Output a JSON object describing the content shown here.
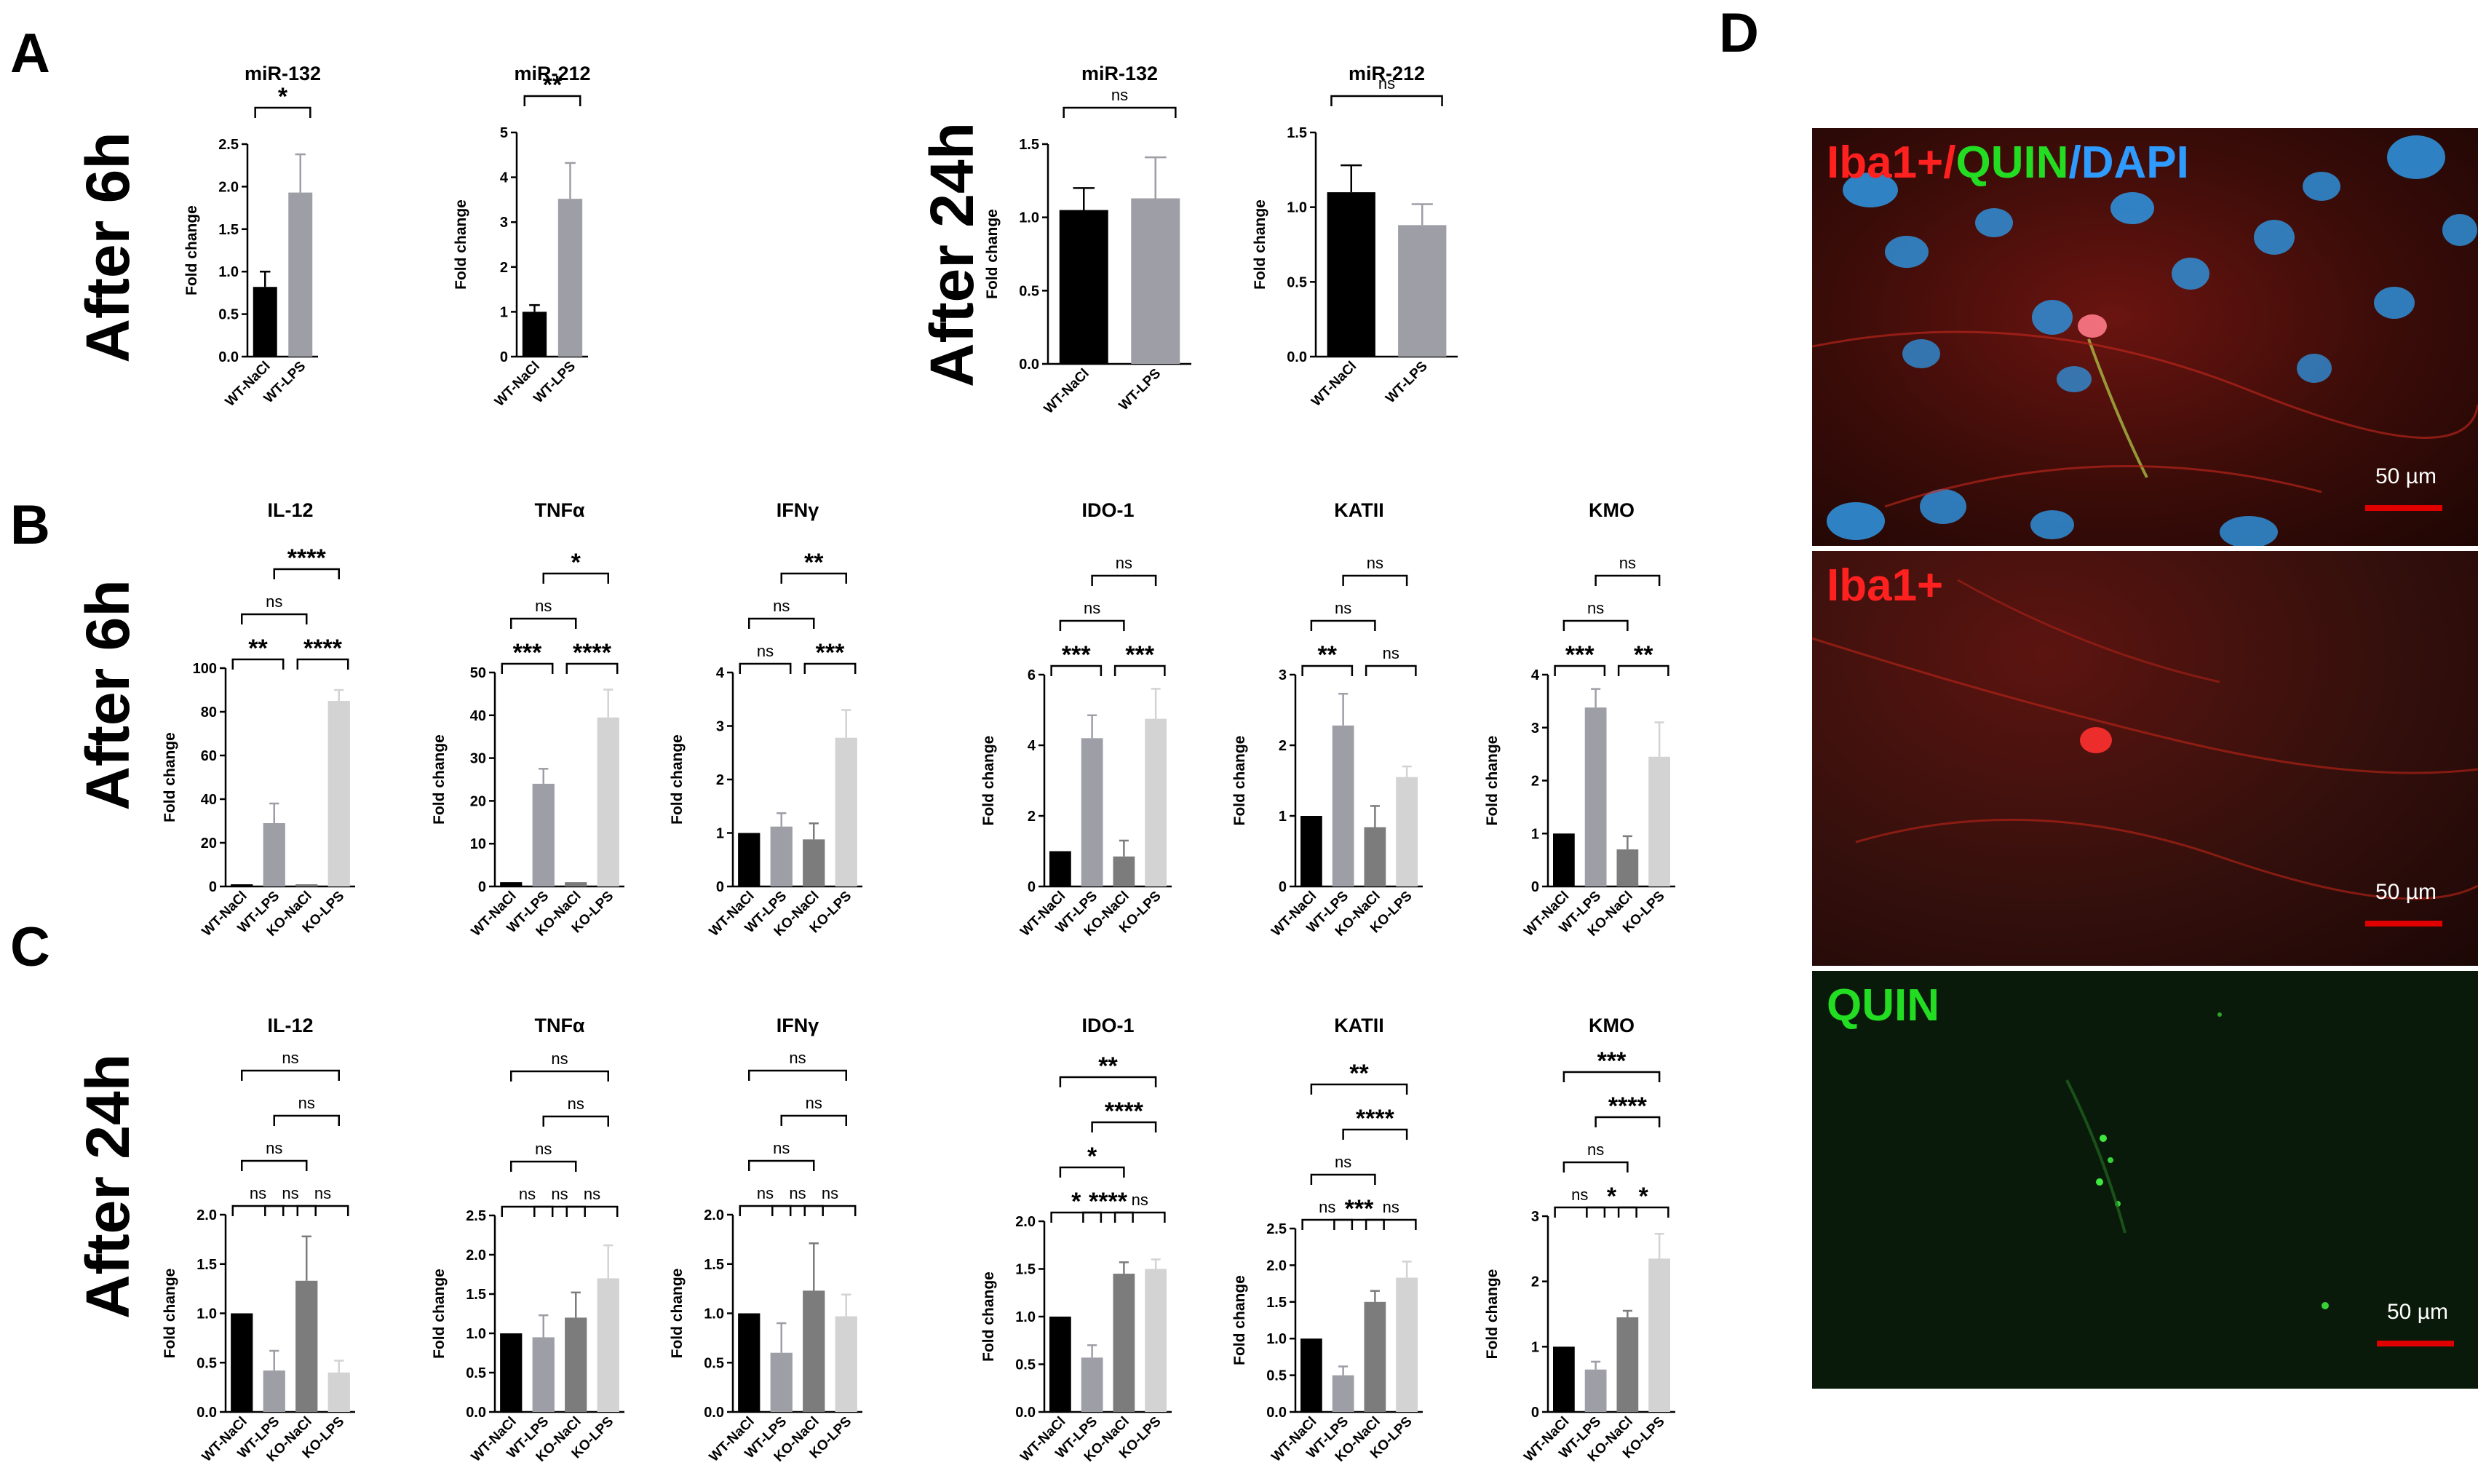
{
  "panels": {
    "A": "A",
    "B": "B",
    "C": "C",
    "D": "D"
  },
  "row_labels": {
    "a_6h": "After 6h",
    "a_24h": "After 24h",
    "b_6h": "After 6h",
    "c_24h": "After 24h"
  },
  "colors": {
    "WT-NaCl": "#000000",
    "WT-LPS": "#9e9ea6",
    "KO-NaCl": "#7c7c7c",
    "KO-LPS": "#d3d3d3"
  },
  "chart_data": [
    {
      "type": "bar",
      "title": "miR-132",
      "ylabel": "Fold change",
      "categories": [
        "WT-NaCl",
        "WT-LPS"
      ],
      "values": [
        0.82,
        1.93
      ],
      "errors": [
        0.18,
        0.45
      ],
      "ylim": [
        0,
        2.5
      ],
      "yticks": [
        0.0,
        0.5,
        1.0,
        1.5,
        2.0,
        2.5
      ],
      "comparisons": [
        {
          "from": 0,
          "to": 1,
          "label": "*"
        }
      ]
    },
    {
      "type": "bar",
      "title": "miR-212",
      "ylabel": "Fold change",
      "categories": [
        "WT-NaCl",
        "WT-LPS"
      ],
      "values": [
        1.0,
        3.52
      ],
      "errors": [
        0.15,
        0.8
      ],
      "ylim": [
        0,
        5
      ],
      "yticks": [
        0,
        1,
        2,
        3,
        4,
        5
      ],
      "comparisons": [
        {
          "from": 0,
          "to": 1,
          "label": "**"
        }
      ]
    },
    {
      "type": "bar",
      "title": "miR-132",
      "ylabel": "Fold change",
      "categories": [
        "WT-NaCl",
        "WT-LPS"
      ],
      "values": [
        1.05,
        1.13
      ],
      "errors": [
        0.15,
        0.28
      ],
      "ylim": [
        0,
        1.5
      ],
      "yticks": [
        0.0,
        0.5,
        1.0,
        1.5
      ],
      "comparisons": [
        {
          "from": 0,
          "to": 1,
          "label": "ns"
        }
      ]
    },
    {
      "type": "bar",
      "title": "miR-212",
      "ylabel": "Fold change",
      "categories": [
        "WT-NaCl",
        "WT-LPS"
      ],
      "values": [
        1.1,
        0.88
      ],
      "errors": [
        0.18,
        0.14
      ],
      "ylim": [
        0,
        1.5
      ],
      "yticks": [
        0.0,
        0.5,
        1.0,
        1.5
      ],
      "comparisons": [
        {
          "from": 0,
          "to": 1,
          "label": "ns"
        }
      ]
    },
    {
      "type": "bar",
      "title": "IL-12",
      "ylabel": "Fold change",
      "categories": [
        "WT-NaCl",
        "WT-LPS",
        "KO-NaCl",
        "KO-LPS"
      ],
      "values": [
        1,
        29,
        1,
        85
      ],
      "errors": [
        0,
        9,
        0,
        5
      ],
      "ylim": [
        0,
        100
      ],
      "yticks": [
        0,
        20,
        40,
        60,
        80,
        100
      ],
      "comparisons": [
        {
          "from": 0,
          "to": 1,
          "label": "**"
        },
        {
          "from": 2,
          "to": 3,
          "label": "****"
        },
        {
          "from": 0,
          "to": 2,
          "label": "ns"
        },
        {
          "from": 1,
          "to": 3,
          "label": "****"
        }
      ]
    },
    {
      "type": "bar",
      "title": "TNFα",
      "ylabel": "Fold change",
      "categories": [
        "WT-NaCl",
        "WT-LPS",
        "KO-NaCl",
        "KO-LPS"
      ],
      "values": [
        1,
        24,
        1,
        39.5
      ],
      "errors": [
        0,
        3.5,
        0,
        6.5
      ],
      "ylim": [
        0,
        50
      ],
      "yticks": [
        0,
        10,
        20,
        30,
        40,
        50
      ],
      "comparisons": [
        {
          "from": 0,
          "to": 1,
          "label": "***"
        },
        {
          "from": 2,
          "to": 3,
          "label": "****"
        },
        {
          "from": 0,
          "to": 2,
          "label": "ns"
        },
        {
          "from": 1,
          "to": 3,
          "label": "*"
        }
      ]
    },
    {
      "type": "bar",
      "title": "IFNγ",
      "ylabel": "Fold change",
      "categories": [
        "WT-NaCl",
        "WT-LPS",
        "KO-NaCl",
        "KO-LPS"
      ],
      "values": [
        1,
        1.12,
        0.88,
        2.78
      ],
      "errors": [
        0,
        0.25,
        0.3,
        0.52
      ],
      "ylim": [
        0,
        4
      ],
      "yticks": [
        0,
        1,
        2,
        3,
        4
      ],
      "comparisons": [
        {
          "from": 0,
          "to": 1,
          "label": "ns"
        },
        {
          "from": 2,
          "to": 3,
          "label": "***"
        },
        {
          "from": 0,
          "to": 2,
          "label": "ns"
        },
        {
          "from": 1,
          "to": 3,
          "label": "**"
        }
      ]
    },
    {
      "type": "bar",
      "title": "IDO-1",
      "ylabel": "Fold change",
      "categories": [
        "WT-NaCl",
        "WT-LPS",
        "KO-NaCl",
        "KO-LPS"
      ],
      "values": [
        1,
        4.2,
        0.85,
        4.75
      ],
      "errors": [
        0,
        0.65,
        0.45,
        0.85
      ],
      "ylim": [
        0,
        6
      ],
      "yticks": [
        0,
        2,
        4,
        6
      ],
      "comparisons": [
        {
          "from": 0,
          "to": 1,
          "label": "***"
        },
        {
          "from": 2,
          "to": 3,
          "label": "***"
        },
        {
          "from": 0,
          "to": 2,
          "label": "ns"
        },
        {
          "from": 1,
          "to": 3,
          "label": "ns"
        }
      ]
    },
    {
      "type": "bar",
      "title": "KATII",
      "ylabel": "Fold change",
      "categories": [
        "WT-NaCl",
        "WT-LPS",
        "KO-NaCl",
        "KO-LPS"
      ],
      "values": [
        1,
        2.28,
        0.84,
        1.55
      ],
      "errors": [
        0,
        0.45,
        0.3,
        0.15
      ],
      "ylim": [
        0,
        3
      ],
      "yticks": [
        0,
        1,
        2,
        3
      ],
      "comparisons": [
        {
          "from": 0,
          "to": 1,
          "label": "**"
        },
        {
          "from": 2,
          "to": 3,
          "label": "ns"
        },
        {
          "from": 0,
          "to": 2,
          "label": "ns"
        },
        {
          "from": 1,
          "to": 3,
          "label": "ns"
        }
      ]
    },
    {
      "type": "bar",
      "title": "KMO",
      "ylabel": "Fold change",
      "categories": [
        "WT-NaCl",
        "WT-LPS",
        "KO-NaCl",
        "KO-LPS"
      ],
      "values": [
        1,
        3.38,
        0.7,
        2.45
      ],
      "errors": [
        0,
        0.35,
        0.25,
        0.65
      ],
      "ylim": [
        0,
        4
      ],
      "yticks": [
        0,
        1,
        2,
        3,
        4
      ],
      "comparisons": [
        {
          "from": 0,
          "to": 1,
          "label": "***"
        },
        {
          "from": 2,
          "to": 3,
          "label": "**"
        },
        {
          "from": 0,
          "to": 2,
          "label": "ns"
        },
        {
          "from": 1,
          "to": 3,
          "label": "ns"
        }
      ]
    },
    {
      "type": "bar",
      "title": "IL-12",
      "ylabel": "Fold change",
      "categories": [
        "WT-NaCl",
        "WT-LPS",
        "KO-NaCl",
        "KO-LPS"
      ],
      "values": [
        1,
        0.42,
        1.33,
        0.4
      ],
      "errors": [
        0,
        0.2,
        0.45,
        0.12
      ],
      "ylim": [
        0,
        2
      ],
      "yticks": [
        0.0,
        0.5,
        1.0,
        1.5,
        2.0
      ],
      "comparisons": [
        {
          "from": 0,
          "to": 1,
          "label": "ns"
        },
        {
          "from": 1,
          "to": 2,
          "label": "ns"
        },
        {
          "from": 2,
          "to": 3,
          "label": "ns"
        },
        {
          "from": 0,
          "to": 2,
          "label": "ns"
        },
        {
          "from": 1,
          "to": 3,
          "label": "ns"
        },
        {
          "from": 0,
          "to": 3,
          "label": "ns"
        }
      ]
    },
    {
      "type": "bar",
      "title": "TNFα",
      "ylabel": "Fold change",
      "categories": [
        "WT-NaCl",
        "WT-LPS",
        "KO-NaCl",
        "KO-LPS"
      ],
      "values": [
        1,
        0.95,
        1.2,
        1.7
      ],
      "errors": [
        0,
        0.28,
        0.32,
        0.42
      ],
      "ylim": [
        0,
        2.5
      ],
      "yticks": [
        0.0,
        0.5,
        1.0,
        1.5,
        2.0,
        2.5
      ],
      "comparisons": [
        {
          "from": 0,
          "to": 1,
          "label": "ns"
        },
        {
          "from": 1,
          "to": 2,
          "label": "ns"
        },
        {
          "from": 2,
          "to": 3,
          "label": "ns"
        },
        {
          "from": 0,
          "to": 2,
          "label": "ns"
        },
        {
          "from": 1,
          "to": 3,
          "label": "ns"
        },
        {
          "from": 0,
          "to": 3,
          "label": "ns"
        }
      ]
    },
    {
      "type": "bar",
      "title": "IFNγ",
      "ylabel": "Fold change",
      "categories": [
        "WT-NaCl",
        "WT-LPS",
        "KO-NaCl",
        "KO-LPS"
      ],
      "values": [
        1,
        0.6,
        1.23,
        0.97
      ],
      "errors": [
        0,
        0.3,
        0.48,
        0.22
      ],
      "ylim": [
        0,
        2
      ],
      "yticks": [
        0.0,
        0.5,
        1.0,
        1.5,
        2.0
      ],
      "comparisons": [
        {
          "from": 0,
          "to": 1,
          "label": "ns"
        },
        {
          "from": 1,
          "to": 2,
          "label": "ns"
        },
        {
          "from": 2,
          "to": 3,
          "label": "ns"
        },
        {
          "from": 0,
          "to": 2,
          "label": "ns"
        },
        {
          "from": 1,
          "to": 3,
          "label": "ns"
        },
        {
          "from": 0,
          "to": 3,
          "label": "ns"
        }
      ]
    },
    {
      "type": "bar",
      "title": "IDO-1",
      "ylabel": "Fold change",
      "categories": [
        "WT-NaCl",
        "WT-LPS",
        "KO-NaCl",
        "KO-LPS"
      ],
      "values": [
        1,
        0.57,
        1.45,
        1.5
      ],
      "errors": [
        0,
        0.13,
        0.12,
        0.1
      ],
      "ylim": [
        0,
        2
      ],
      "yticks": [
        0.0,
        0.5,
        1.0,
        1.5,
        2.0
      ],
      "comparisons": [
        {
          "from": 0,
          "to": 1,
          "label": "*"
        },
        {
          "from": 1,
          "to": 2,
          "label": "****"
        },
        {
          "from": 2,
          "to": 3,
          "label": "ns"
        },
        {
          "from": 0,
          "to": 2,
          "label": "*"
        },
        {
          "from": 1,
          "to": 3,
          "label": "****"
        },
        {
          "from": 0,
          "to": 3,
          "label": "**"
        }
      ]
    },
    {
      "type": "bar",
      "title": "KATII",
      "ylabel": "Fold change",
      "categories": [
        "WT-NaCl",
        "WT-LPS",
        "KO-NaCl",
        "KO-LPS"
      ],
      "values": [
        1,
        0.5,
        1.5,
        1.83
      ],
      "errors": [
        0,
        0.12,
        0.15,
        0.22
      ],
      "ylim": [
        0,
        2.5
      ],
      "yticks": [
        0.0,
        0.5,
        1.0,
        1.5,
        2.0,
        2.5
      ],
      "comparisons": [
        {
          "from": 0,
          "to": 1,
          "label": "ns"
        },
        {
          "from": 1,
          "to": 2,
          "label": "***"
        },
        {
          "from": 2,
          "to": 3,
          "label": "ns"
        },
        {
          "from": 0,
          "to": 2,
          "label": "ns"
        },
        {
          "from": 1,
          "to": 3,
          "label": "****"
        },
        {
          "from": 0,
          "to": 3,
          "label": "**"
        }
      ]
    },
    {
      "type": "bar",
      "title": "KMO",
      "ylabel": "Fold change",
      "categories": [
        "WT-NaCl",
        "WT-LPS",
        "KO-NaCl",
        "KO-LPS"
      ],
      "values": [
        1,
        0.65,
        1.45,
        2.35
      ],
      "errors": [
        0,
        0.12,
        0.1,
        0.38
      ],
      "ylim": [
        0,
        3
      ],
      "yticks": [
        0,
        1,
        2,
        3
      ],
      "comparisons": [
        {
          "from": 0,
          "to": 1,
          "label": "ns"
        },
        {
          "from": 1,
          "to": 2,
          "label": "*"
        },
        {
          "from": 2,
          "to": 3,
          "label": "*"
        },
        {
          "from": 0,
          "to": 2,
          "label": "ns"
        },
        {
          "from": 1,
          "to": 3,
          "label": "****"
        },
        {
          "from": 0,
          "to": 3,
          "label": "***"
        }
      ]
    }
  ],
  "micrographs": {
    "top": {
      "label_parts": [
        "Iba1+/",
        "QUIN",
        "/DAPI"
      ],
      "scale": "50 µm"
    },
    "middle": {
      "label": "Iba1+",
      "scale": "50 µm"
    },
    "bottom": {
      "label": "QUIN",
      "scale": "50 µm"
    }
  }
}
